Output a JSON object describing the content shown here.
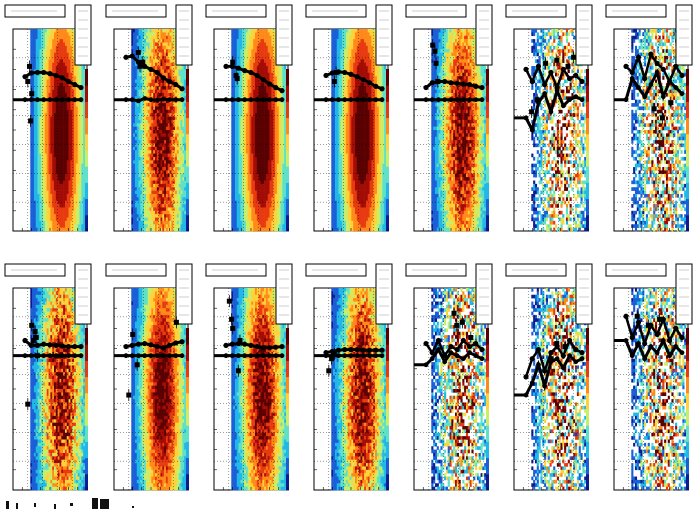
{
  "figure": {
    "rows": 2,
    "cols": 7,
    "colorbar": [
      "#0b1d8f",
      "#1b5fd6",
      "#21b7e6",
      "#5fe0c9",
      "#c8ee6a",
      "#ffd23a",
      "#ff8a1a",
      "#e83a10",
      "#a30c05",
      "#5a0000"
    ],
    "background": "#ffffff",
    "panel_frame": "#000000",
    "marker_color": "#000000"
  },
  "chart_data": [
    {
      "type": "heatmap",
      "row": 0,
      "col": 0,
      "ylim": [
        -1,
        1
      ],
      "noise": 0.0,
      "fill": 0.85,
      "overlay": "smooth",
      "upper": [
        0.38,
        0.44,
        0.45,
        0.45,
        0.43,
        0.4,
        0.36,
        0.3,
        0.25,
        0.2
      ],
      "lower": [
        0.0,
        0.0,
        0.0,
        0.0,
        0.0,
        0.0,
        0.0,
        0.0,
        0.0,
        0.0
      ],
      "outliers": [
        [
          0.05,
          0.3
        ],
        [
          0.08,
          0.55
        ],
        [
          0.1,
          -0.35
        ],
        [
          0.12,
          0.1
        ]
      ]
    },
    {
      "type": "heatmap",
      "row": 0,
      "col": 1,
      "ylim": [
        -1,
        1
      ],
      "noise": 0.25,
      "fill": 0.9,
      "overlay": "smooth",
      "upper": [
        0.7,
        0.72,
        0.62,
        0.55,
        0.5,
        0.45,
        0.36,
        0.3,
        0.25,
        0.18
      ],
      "lower": [
        0.0,
        0.0,
        -0.02,
        0.02,
        0.0,
        -0.01,
        0.01,
        0.0,
        0.0,
        0.0
      ],
      "outliers": [
        [
          0.22,
          0.78
        ],
        [
          0.25,
          0.55
        ],
        [
          0.3,
          0.62
        ]
      ]
    },
    {
      "type": "heatmap",
      "row": 0,
      "col": 2,
      "ylim": [
        -1,
        1
      ],
      "noise": 0.0,
      "fill": 0.85,
      "overlay": "smooth",
      "upper": [
        0.55,
        0.55,
        0.52,
        0.48,
        0.45,
        0.4,
        0.33,
        0.26,
        0.2,
        0.15
      ],
      "lower": [
        0.0,
        0.0,
        0.0,
        0.0,
        0.0,
        0.0,
        0.0,
        0.0,
        0.0,
        0.0
      ],
      "outliers": [
        [
          0.12,
          0.62
        ],
        [
          0.18,
          0.4
        ],
        [
          0.2,
          0.35
        ]
      ]
    },
    {
      "type": "heatmap",
      "row": 0,
      "col": 3,
      "ylim": [
        -1,
        1
      ],
      "noise": 0.0,
      "fill": 0.85,
      "overlay": "smooth",
      "upper": [
        0.4,
        0.44,
        0.46,
        0.45,
        0.42,
        0.38,
        0.33,
        0.28,
        0.22,
        0.18
      ],
      "lower": [
        0.0,
        0.0,
        0.0,
        0.0,
        0.0,
        0.0,
        0.0,
        0.0,
        0.0,
        0.0
      ],
      "outliers": [
        [
          0.15,
          0.3
        ],
        [
          0.18,
          0.45
        ]
      ]
    },
    {
      "type": "heatmap",
      "row": 0,
      "col": 4,
      "ylim": [
        -1,
        1
      ],
      "noise": 0.25,
      "fill": 0.9,
      "overlay": "smooth",
      "upper": [
        0.2,
        0.28,
        0.3,
        0.3,
        0.28,
        0.27,
        0.26,
        0.25,
        0.22,
        0.2
      ],
      "lower": [
        0.0,
        0.0,
        0.0,
        0.0,
        0.0,
        0.0,
        0.0,
        0.0,
        0.0,
        0.0
      ],
      "outliers": [
        [
          0.12,
          0.9
        ],
        [
          0.16,
          0.8
        ],
        [
          0.18,
          0.6
        ],
        [
          0.21,
          0.3
        ]
      ]
    },
    {
      "type": "heatmap",
      "row": 0,
      "col": 5,
      "ylim": [
        -1,
        1
      ],
      "noise": 0.7,
      "fill": 0.55,
      "overlay": "noisy",
      "upper": [
        0.5,
        0.3,
        0.55,
        0.25,
        0.45,
        0.2,
        0.5,
        0.35,
        0.4,
        0.3
      ],
      "lower": [
        -0.3,
        -0.5,
        -0.05,
        0.1,
        -0.2,
        0.15,
        -0.1,
        0.0,
        0.05,
        0.0
      ],
      "outliers": [
        [
          0.1,
          -0.2
        ],
        [
          0.2,
          0.0
        ],
        [
          0.35,
          0.6
        ],
        [
          0.55,
          0.65
        ],
        [
          0.75,
          0.55
        ],
        [
          0.85,
          0.7
        ]
      ]
    },
    {
      "type": "heatmap",
      "row": 0,
      "col": 6,
      "ylim": [
        -1,
        1
      ],
      "noise": 0.75,
      "fill": 0.6,
      "overlay": "noisy",
      "upper": [
        0.55,
        0.45,
        0.7,
        0.35,
        0.75,
        0.6,
        0.5,
        0.3,
        0.55,
        0.4
      ],
      "lower": [
        0.0,
        0.35,
        0.2,
        0.05,
        0.25,
        0.45,
        0.05,
        0.3,
        0.2,
        0.1
      ],
      "outliers": [
        [
          0.5,
          -0.15
        ],
        [
          0.65,
          -0.3
        ],
        [
          0.8,
          -0.05
        ]
      ]
    },
    {
      "type": "heatmap",
      "row": 1,
      "col": 0,
      "ylim": [
        -1,
        1
      ],
      "noise": 0.35,
      "fill": 0.85,
      "overlay": "smooth",
      "upper": [
        0.3,
        0.22,
        0.22,
        0.24,
        0.23,
        0.22,
        0.21,
        0.2,
        0.2,
        0.2
      ],
      "lower": [
        0.05,
        0.05,
        0.05,
        0.05,
        0.05,
        0.05,
        0.05,
        0.05,
        0.05,
        0.05
      ],
      "outliers": [
        [
          0.05,
          -0.75
        ],
        [
          0.12,
          0.55
        ],
        [
          0.15,
          0.3
        ],
        [
          0.18,
          0.45
        ],
        [
          0.2,
          0.35
        ],
        [
          0.22,
          0.05
        ]
      ]
    },
    {
      "type": "heatmap",
      "row": 1,
      "col": 1,
      "ylim": [
        -1,
        1
      ],
      "noise": 0.15,
      "fill": 0.85,
      "overlay": "smooth",
      "upper": [
        0.2,
        0.22,
        0.24,
        0.25,
        0.23,
        0.2,
        0.18,
        0.22,
        0.26,
        0.28
      ],
      "lower": [
        0.05,
        0.05,
        0.05,
        0.05,
        0.05,
        0.05,
        0.05,
        0.05,
        0.05,
        0.05
      ],
      "outliers": [
        [
          0.05,
          -0.6
        ],
        [
          0.12,
          0.4
        ],
        [
          0.2,
          -0.1
        ],
        [
          0.9,
          0.6
        ]
      ]
    },
    {
      "type": "heatmap",
      "row": 1,
      "col": 2,
      "ylim": [
        -1,
        1
      ],
      "noise": 0.2,
      "fill": 0.85,
      "overlay": "smooth",
      "upper": [
        0.22,
        0.24,
        0.25,
        0.24,
        0.22,
        0.2,
        0.18,
        0.18,
        0.19,
        0.2
      ],
      "lower": [
        0.05,
        0.05,
        0.05,
        0.05,
        0.05,
        0.05,
        0.05,
        0.05,
        0.05,
        0.05
      ],
      "outliers": [
        [
          0.06,
          0.95
        ],
        [
          0.1,
          0.65
        ],
        [
          0.12,
          0.5
        ],
        [
          0.22,
          -0.2
        ],
        [
          0.25,
          0.3
        ]
      ]
    },
    {
      "type": "heatmap",
      "row": 1,
      "col": 3,
      "ylim": [
        -1,
        1
      ],
      "noise": 0.3,
      "fill": 0.85,
      "overlay": "smooth",
      "upper": [
        0.1,
        0.12,
        0.14,
        0.15,
        0.15,
        0.15,
        0.14,
        0.14,
        0.14,
        0.14
      ],
      "lower": [
        0.05,
        0.05,
        0.05,
        0.05,
        0.05,
        0.05,
        0.05,
        0.05,
        0.05,
        0.05
      ],
      "outliers": [
        [
          0.05,
          -0.2
        ],
        [
          0.1,
          0.0
        ],
        [
          0.15,
          0.08
        ]
      ]
    },
    {
      "type": "heatmap",
      "row": 1,
      "col": 4,
      "ylim": [
        -1,
        1
      ],
      "noise": 0.75,
      "fill": 0.6,
      "overlay": "noisy",
      "upper": [
        0.25,
        0.1,
        0.3,
        0.05,
        0.2,
        0.15,
        0.3,
        0.2,
        0.25,
        0.15
      ],
      "lower": [
        -0.1,
        0.0,
        0.15,
        -0.05,
        0.1,
        0.05,
        0.0,
        0.1,
        0.05,
        0.0
      ],
      "outliers": [
        [
          0.5,
          0.75
        ],
        [
          0.55,
          0.55
        ],
        [
          0.65,
          0.6
        ],
        [
          0.8,
          0.35
        ]
      ]
    },
    {
      "type": "heatmap",
      "row": 1,
      "col": 5,
      "ylim": [
        -1,
        1
      ],
      "noise": 0.8,
      "fill": 0.55,
      "overlay": "noisy",
      "upper": [
        -0.3,
        0.0,
        0.15,
        -0.2,
        0.1,
        0.2,
        0.05,
        0.3,
        0.15,
        0.1
      ],
      "lower": [
        -0.6,
        -0.4,
        -0.1,
        -0.45,
        -0.05,
        0.0,
        -0.15,
        0.05,
        -0.05,
        0.0
      ],
      "outliers": [
        [
          0.45,
          0.0
        ],
        [
          0.55,
          0.25
        ],
        [
          0.7,
          0.2
        ]
      ]
    },
    {
      "type": "heatmap",
      "row": 1,
      "col": 6,
      "ylim": [
        -1,
        1
      ],
      "noise": 0.8,
      "fill": 0.55,
      "overlay": "noisy",
      "upper": [
        0.7,
        0.35,
        0.6,
        0.25,
        0.55,
        0.4,
        0.65,
        0.3,
        0.5,
        0.35
      ],
      "lower": [
        0.3,
        0.05,
        0.25,
        0.0,
        0.2,
        0.1,
        0.3,
        0.05,
        0.2,
        0.1
      ],
      "outliers": [
        [
          0.2,
          0.7
        ],
        [
          0.4,
          0.55
        ],
        [
          0.6,
          0.65
        ]
      ]
    }
  ]
}
